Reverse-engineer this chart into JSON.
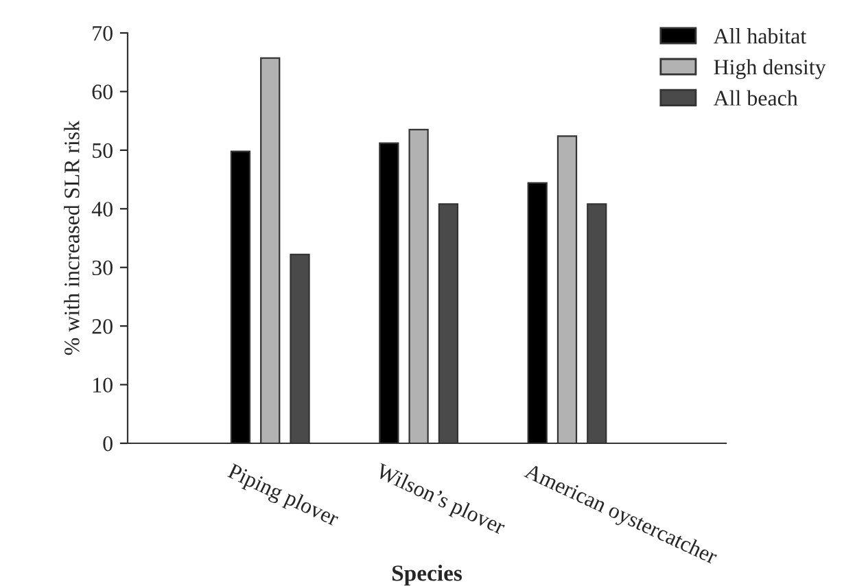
{
  "chart_data": {
    "type": "bar",
    "xlabel": "Species",
    "ylabel": "% with increased SLR risk",
    "categories": [
      "Piping plover",
      "Wilson’s plover",
      "American oystercatcher"
    ],
    "series": [
      {
        "name": "All habitat",
        "color": "#000000",
        "values": [
          49.8,
          51.2,
          44.4
        ]
      },
      {
        "name": "High density",
        "color": "#b2b2b2",
        "values": [
          65.7,
          53.5,
          52.4
        ]
      },
      {
        "name": "All beach",
        "color": "#4a4a4a",
        "values": [
          32.2,
          40.8,
          40.8
        ]
      }
    ],
    "ylim": [
      0,
      70
    ],
    "yticks": [
      0,
      10,
      20,
      30,
      40,
      50,
      60,
      70
    ],
    "grid": false,
    "legend": "top right"
  }
}
